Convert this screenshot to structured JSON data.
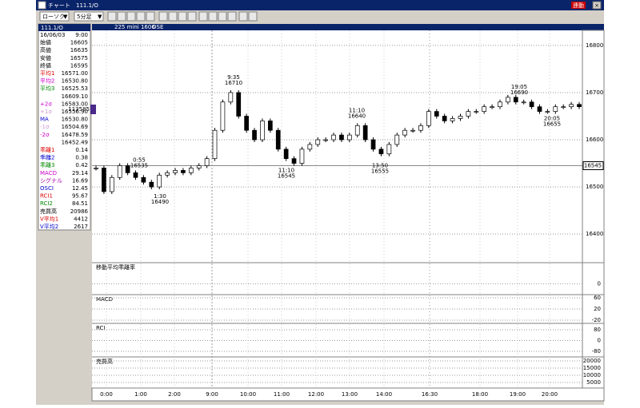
{
  "window": {
    "app_title": "チャート",
    "symbol": "111.1/O",
    "link_button": "連動"
  },
  "toolbar": {
    "chart_style": "ローソク",
    "interval": "5分足"
  },
  "info_panel": {
    "header": "111.1/O",
    "rows": [
      {
        "label": "16/06/03",
        "value": "9:00"
      },
      {
        "label": "始値",
        "value": "16605"
      },
      {
        "label": "高値",
        "value": "16635"
      },
      {
        "label": "安値",
        "value": "16575"
      },
      {
        "label": "終値",
        "value": "16595"
      },
      {
        "label": "平均1",
        "value": "16571.00"
      },
      {
        "label": "平均2",
        "value": "16530.80"
      },
      {
        "label": "平均3",
        "value": "16525.53"
      },
      {
        "value": "16609.10"
      },
      {
        "label": "+2σ",
        "value": "16583.00"
      },
      {
        "label": "+1σ",
        "value": "16556.90"
      },
      {
        "label": "MA",
        "value": "16530.80"
      },
      {
        "label": "-1σ",
        "value": "16504.69"
      },
      {
        "label": "-2σ",
        "value": "16478.59"
      },
      {
        "value": "16452.49"
      },
      {
        "label": "乖離1",
        "value": "0.14"
      },
      {
        "label": "乖離2",
        "value": "0.38"
      },
      {
        "label": "乖離3",
        "value": "0.42"
      },
      {
        "label": "MACD",
        "value": "29.14"
      },
      {
        "label": "シグナル",
        "value": "16.69"
      },
      {
        "label": "OSCI",
        "value": "12.45"
      },
      {
        "label": "RCI1",
        "value": "95.67"
      },
      {
        "label": "RCI2",
        "value": "84.51"
      },
      {
        "label": "売買高",
        "value": "20986"
      },
      {
        "label": "V平均1",
        "value": "4412"
      },
      {
        "label": "V平均2",
        "value": "2617"
      }
    ]
  },
  "main_chart": {
    "header": "225 mini 1606",
    "exchange": "OSE",
    "left_marker": "113585",
    "ylim": [
      16341,
      16832
    ],
    "yticks": [
      16400,
      16500,
      16600,
      16700,
      16800
    ],
    "current_price": 16545,
    "close": [
      16540,
      16490,
      16520,
      16545,
      16530,
      16520,
      16510,
      16500,
      16525,
      16530,
      16535,
      16530,
      16540,
      16545,
      16560,
      16620,
      16680,
      16700,
      16650,
      16620,
      16600,
      16640,
      16620,
      16580,
      16560,
      16550,
      16580,
      16590,
      16600,
      16600,
      16610,
      16600,
      16610,
      16630,
      16600,
      16580,
      16570,
      16590,
      16610,
      16620,
      16620,
      16630,
      16660,
      16650,
      16640,
      16645,
      16650,
      16660,
      16660,
      16670,
      16670,
      16680,
      16690,
      16680,
      16680,
      16670,
      16660,
      16660,
      16670,
      16670,
      16675,
      16670
    ],
    "annotations": [
      {
        "time": "9:35",
        "price": 16710
      },
      {
        "time": "0:55",
        "price": 16535
      },
      {
        "time": "1:30",
        "price": 16490
      },
      {
        "time": "11:10",
        "price": 16545
      },
      {
        "time": "11:10",
        "price": 16640
      },
      {
        "time": "13:50",
        "price": 16555
      },
      {
        "time": "19:05",
        "price": 16690
      },
      {
        "time": "20:05",
        "price": 16655
      }
    ]
  },
  "sub_charts": [
    {
      "title": "移動平均乖離率",
      "ylim": [
        -1.2,
        2.4
      ],
      "yticks": [
        0
      ]
    },
    {
      "title": "MACD",
      "ylim": [
        -28.6,
        68.6
      ],
      "yticks": [
        60,
        20,
        -20
      ]
    },
    {
      "title": "RCI",
      "ylim": [
        -121,
        121
      ],
      "yticks": [
        80,
        0,
        -80
      ]
    },
    {
      "title": "売買高",
      "ylim": [
        2222,
        22222
      ],
      "yticks": [
        20000,
        15000,
        10000,
        5000
      ]
    }
  ],
  "time_axis": [
    "0:00",
    "1:00",
    "2:00",
    "9:00",
    "10:00",
    "11:00",
    "12:00",
    "13:00",
    "14:00",
    "16:30",
    "18:00",
    "19:00",
    "20:00"
  ]
}
